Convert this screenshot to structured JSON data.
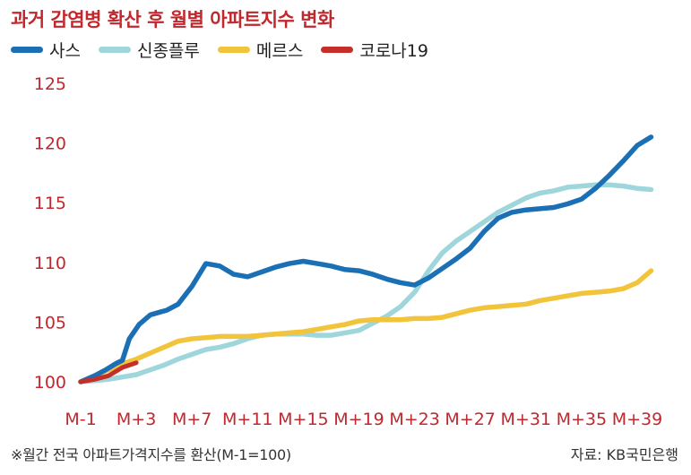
{
  "title": "과거 감염병 확산 후 월별 아파트지수 변화",
  "footnote": "※월간 전국 아파트가격지수를 환산(M-1=100)",
  "source": "자료: KB국민은행",
  "colors": {
    "title": "#c1272d",
    "ticks": "#c1272d",
    "사스": "#1a6fb5",
    "신종플루": "#9fd6dc",
    "메르스": "#f2c43c",
    "코로나19": "#c62e2a"
  },
  "chart_data": {
    "type": "line",
    "title": "과거 감염병 확산 후 월별 아파트지수 변화",
    "xlabel": "",
    "ylabel": "",
    "ylim": [
      100,
      125
    ],
    "yticks": [
      100,
      105,
      110,
      115,
      120,
      125
    ],
    "xlim": [
      -1,
      41
    ],
    "xticks": [
      -1,
      3,
      7,
      11,
      15,
      19,
      23,
      27,
      31,
      35,
      39
    ],
    "xtick_labels": [
      "M-1",
      "M+3",
      "M+7",
      "M+11",
      "M+15",
      "M+19",
      "M+23",
      "M+27",
      "M+31",
      "M+35",
      "M+39"
    ],
    "grid": false,
    "legend_position": "top-left",
    "series": [
      {
        "name": "사스",
        "x": [
          -1,
          0,
          0.8,
          1.5,
          2,
          2.5,
          3.2,
          4,
          4.6,
          5.2,
          6,
          7,
          8,
          9,
          10,
          11,
          12,
          13,
          14,
          15,
          16,
          17,
          18,
          19,
          20,
          21,
          22,
          23,
          24,
          25,
          26,
          27,
          28,
          29,
          30,
          31,
          32,
          33,
          34,
          35,
          36,
          37,
          38,
          39,
          40
        ],
        "values": [
          100,
          100.5,
          101,
          101.5,
          101.8,
          103.6,
          104.8,
          105.6,
          105.8,
          106.0,
          106.5,
          108.0,
          109.9,
          109.7,
          109.0,
          108.8,
          109.2,
          109.6,
          109.9,
          110.1,
          109.9,
          109.7,
          109.4,
          109.3,
          109.0,
          108.6,
          108.3,
          108.1,
          108.7,
          109.5,
          110.3,
          111.2,
          112.6,
          113.7,
          114.2,
          114.4,
          114.5,
          114.6,
          114.9,
          115.3,
          116.2,
          117.3,
          118.5,
          119.8,
          120.5
        ]
      },
      {
        "name": "신종플루",
        "x": [
          -1,
          0,
          1,
          2,
          3,
          4,
          5,
          6,
          7,
          8,
          9,
          10,
          11,
          12,
          13,
          14,
          15,
          16,
          17,
          18,
          19,
          20,
          21,
          22,
          23,
          24,
          25,
          26,
          27,
          28,
          29,
          30,
          31,
          32,
          33,
          34,
          35,
          36,
          37,
          38,
          39,
          40
        ],
        "values": [
          100,
          100.1,
          100.2,
          100.4,
          100.6,
          101.0,
          101.4,
          101.9,
          102.3,
          102.7,
          102.9,
          103.2,
          103.6,
          103.9,
          104.0,
          104.0,
          104.0,
          103.9,
          103.9,
          104.1,
          104.3,
          104.9,
          105.5,
          106.3,
          107.5,
          109.3,
          110.8,
          111.8,
          112.6,
          113.4,
          114.2,
          114.8,
          115.4,
          115.8,
          116.0,
          116.3,
          116.4,
          116.5,
          116.5,
          116.4,
          116.2,
          116.1
        ]
      },
      {
        "name": "메르스",
        "x": [
          -1,
          0,
          1,
          2,
          3,
          4,
          5,
          6,
          7,
          8,
          9,
          10,
          11,
          12,
          13,
          14,
          15,
          16,
          17,
          18,
          19,
          20,
          21,
          22,
          23,
          24,
          25,
          26,
          27,
          28,
          29,
          30,
          31,
          32,
          33,
          34,
          35,
          36,
          37,
          38,
          39,
          40
        ],
        "values": [
          100,
          100.5,
          101.0,
          101.5,
          101.9,
          102.4,
          102.9,
          103.4,
          103.6,
          103.7,
          103.8,
          103.8,
          103.8,
          103.9,
          104.0,
          104.1,
          104.2,
          104.4,
          104.6,
          104.8,
          105.1,
          105.2,
          105.2,
          105.2,
          105.3,
          105.3,
          105.4,
          105.7,
          106.0,
          106.2,
          106.3,
          106.4,
          106.5,
          106.8,
          107.0,
          107.2,
          107.4,
          107.5,
          107.6,
          107.8,
          108.3,
          109.3
        ]
      },
      {
        "name": "코로나19",
        "x": [
          -1,
          0,
          1,
          2,
          3
        ],
        "values": [
          100,
          100.2,
          100.5,
          101.2,
          101.6
        ]
      }
    ]
  }
}
